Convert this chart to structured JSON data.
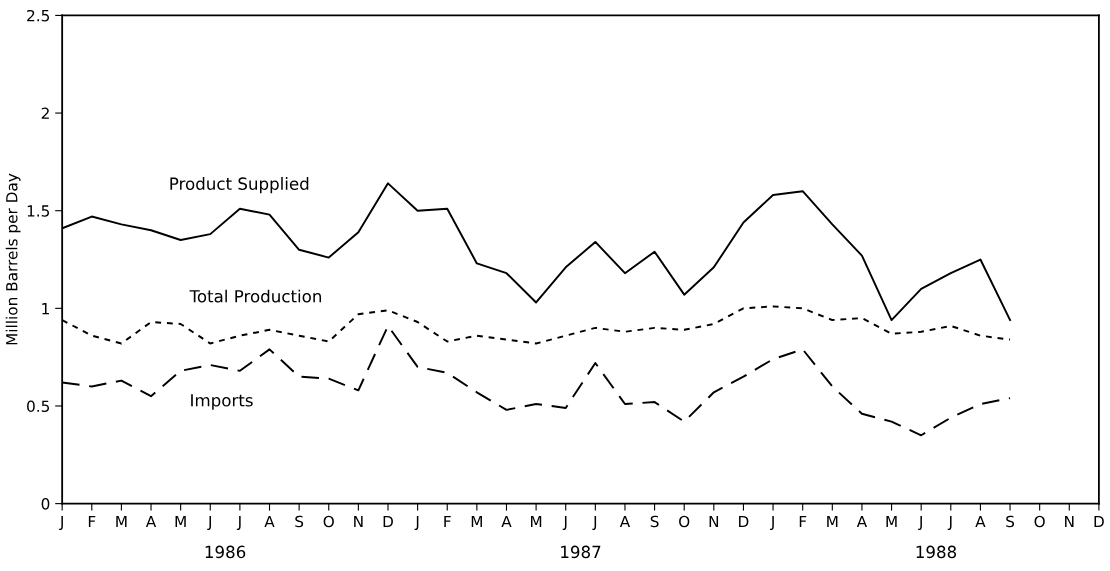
{
  "chart_data": {
    "type": "line",
    "ylabel": "Million Barrels per Day",
    "categories": [
      "J",
      "F",
      "M",
      "A",
      "M",
      "J",
      "J",
      "A",
      "S",
      "O",
      "N",
      "D",
      "J",
      "F",
      "M",
      "A",
      "M",
      "J",
      "J",
      "A",
      "S",
      "O",
      "N",
      "D",
      "J",
      "F",
      "M",
      "A",
      "M",
      "J",
      "J",
      "A",
      "S",
      "O",
      "N",
      "D"
    ],
    "series": [
      {
        "name": "Product Supplied",
        "color": "#000000",
        "line_style": "solid",
        "values": [
          1.41,
          1.47,
          1.43,
          1.4,
          1.35,
          1.38,
          1.51,
          1.48,
          1.3,
          1.26,
          1.39,
          1.64,
          1.5,
          1.51,
          1.23,
          1.18,
          1.03,
          1.21,
          1.34,
          1.18,
          1.29,
          1.07,
          1.21,
          1.44,
          1.58,
          1.6,
          1.43,
          1.27,
          0.94,
          1.1,
          1.18,
          1.25,
          0.94,
          null,
          null,
          null
        ]
      },
      {
        "name": "Total Production",
        "color": "#000000",
        "line_style": "dotted",
        "values": [
          0.94,
          0.86,
          0.82,
          0.93,
          0.92,
          0.82,
          0.86,
          0.89,
          0.86,
          0.83,
          0.97,
          0.99,
          0.93,
          0.83,
          0.86,
          0.84,
          0.82,
          0.86,
          0.9,
          0.88,
          0.9,
          0.89,
          0.92,
          1.0,
          1.01,
          1.0,
          0.94,
          0.95,
          0.87,
          0.88,
          0.91,
          0.86,
          0.84,
          null,
          null,
          null
        ]
      },
      {
        "name": "Imports",
        "color": "#000000",
        "line_style": "dashed",
        "values": [
          0.62,
          0.6,
          0.63,
          0.55,
          0.68,
          0.71,
          0.68,
          0.79,
          0.65,
          0.64,
          0.58,
          0.91,
          0.7,
          0.67,
          0.57,
          0.48,
          0.51,
          0.49,
          0.72,
          0.51,
          0.52,
          0.42,
          0.57,
          0.65,
          0.74,
          0.79,
          0.6,
          0.46,
          0.42,
          0.35,
          0.44,
          0.51,
          0.54,
          null,
          null,
          null
        ]
      }
    ],
    "annotations": [
      "1986",
      "1987",
      "1988"
    ],
    "ylim": [
      0,
      2.5
    ],
    "yticks": [
      0,
      0.5,
      1,
      1.5,
      2,
      2.5
    ],
    "grid": false,
    "legend": false,
    "marker": "none"
  }
}
